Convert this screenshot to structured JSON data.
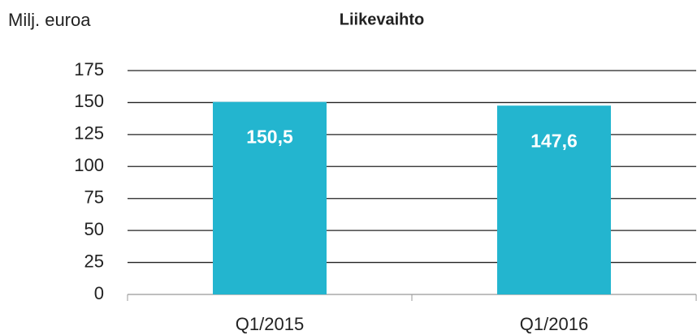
{
  "chart_data": {
    "type": "bar",
    "title": "Liikevaihto",
    "y_label": "Milj. euroa",
    "categories": [
      "Q1/2015",
      "Q1/2016"
    ],
    "values": [
      150.5,
      147.6
    ],
    "value_labels": [
      "150,5",
      "147,6"
    ],
    "color": "#23b5cf",
    "ylim": [
      0,
      175
    ],
    "yticks": [
      0,
      25,
      50,
      75,
      100,
      125,
      150,
      175
    ],
    "grid": true
  }
}
